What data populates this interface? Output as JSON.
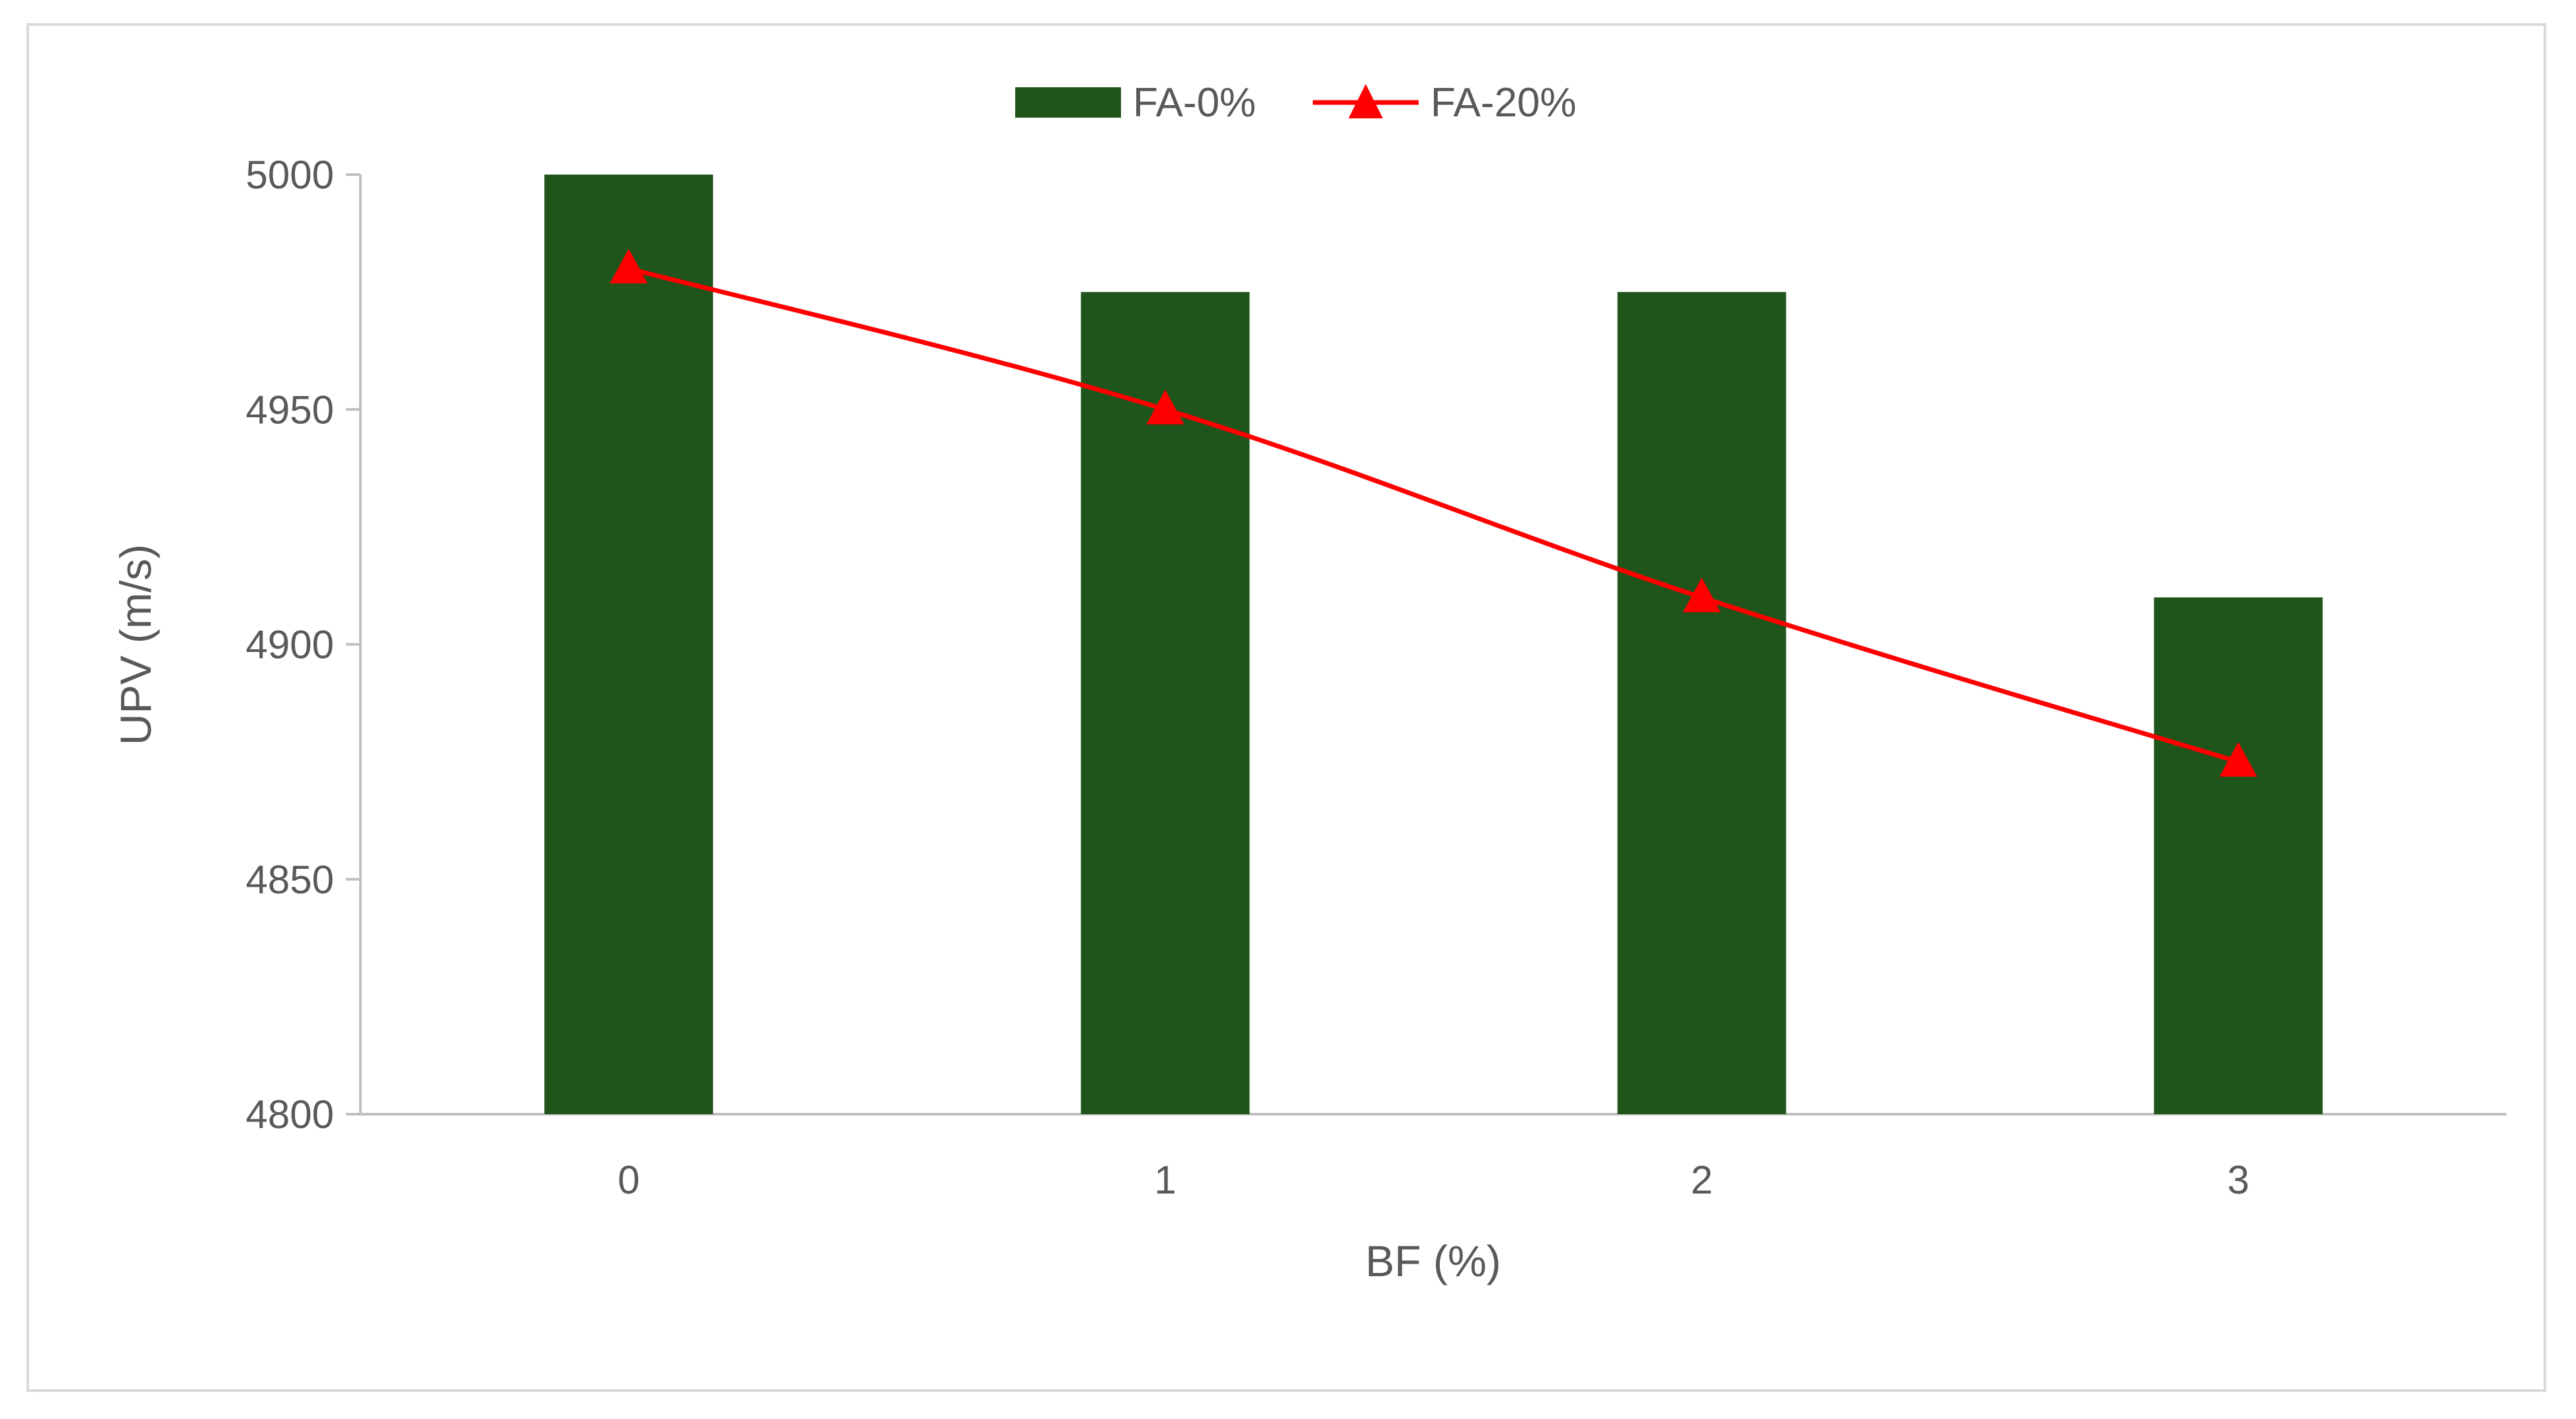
{
  "chart_data": {
    "type": "bar",
    "title": "",
    "xlabel": "BF (%)",
    "ylabel": "UPV (m/s)",
    "categories": [
      "0",
      "1",
      "2",
      "3"
    ],
    "ylim": [
      4800,
      5000
    ],
    "yticks": [
      4800,
      4850,
      4900,
      4950,
      5000
    ],
    "grid": false,
    "legend_position": "top",
    "series": [
      {
        "name": "FA-0%",
        "type": "bar",
        "color": "#1f541b",
        "values": [
          5000,
          4975,
          4975,
          4910
        ]
      },
      {
        "name": "FA-20%",
        "type": "line",
        "marker": "triangle",
        "color": "#ff0000",
        "values": [
          4980,
          4950,
          4910,
          4875
        ]
      }
    ]
  }
}
